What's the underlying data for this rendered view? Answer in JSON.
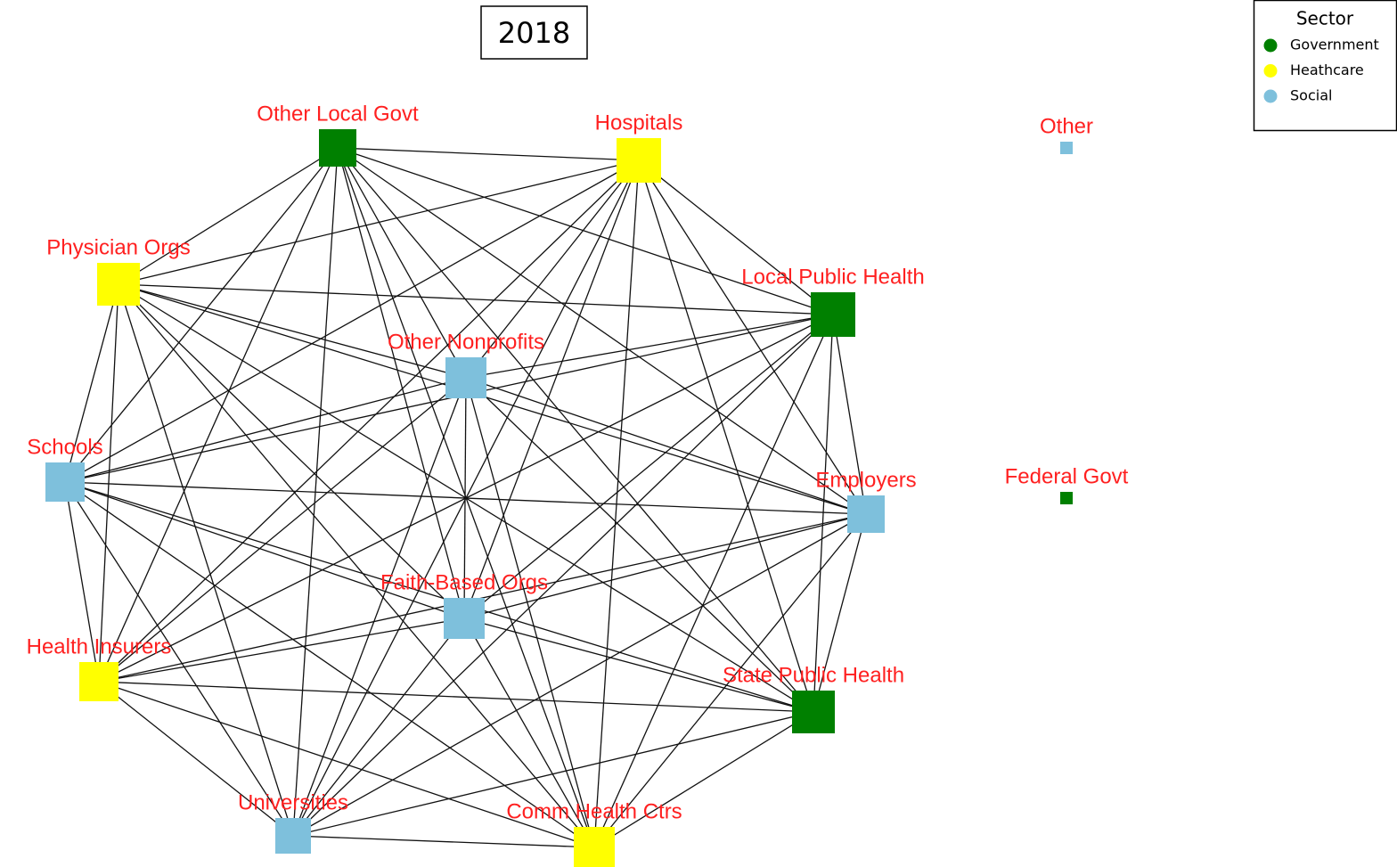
{
  "title": "2018",
  "legend": {
    "title": "Sector",
    "items": [
      {
        "name": "Government",
        "color": "#008000"
      },
      {
        "name": "Heathcare",
        "color": "#ffff00"
      },
      {
        "name": "Social",
        "color": "#7ec0dc"
      }
    ]
  },
  "nodes": [
    {
      "label": "Other Local Govt",
      "color": "#008000"
    },
    {
      "label": "Hospitals",
      "color": "#ffff00"
    },
    {
      "label": "Physician Orgs",
      "color": "#ffff00"
    },
    {
      "label": "Local Public Health",
      "color": "#008000"
    },
    {
      "label": "Other Nonprofits",
      "color": "#7ec0dc"
    },
    {
      "label": "Schools",
      "color": "#7ec0dc"
    },
    {
      "label": "Employers",
      "color": "#7ec0dc"
    },
    {
      "label": "Faith-Based Orgs",
      "color": "#7ec0dc"
    },
    {
      "label": "Health Insurers",
      "color": "#ffff00"
    },
    {
      "label": "State Public Health",
      "color": "#008000"
    },
    {
      "label": "Universities",
      "color": "#7ec0dc"
    },
    {
      "label": "Comm Health Ctrs",
      "color": "#ffff00"
    },
    {
      "label": "Other",
      "color": "#7ec0dc"
    },
    {
      "label": "Federal Govt",
      "color": "#008000"
    }
  ]
}
